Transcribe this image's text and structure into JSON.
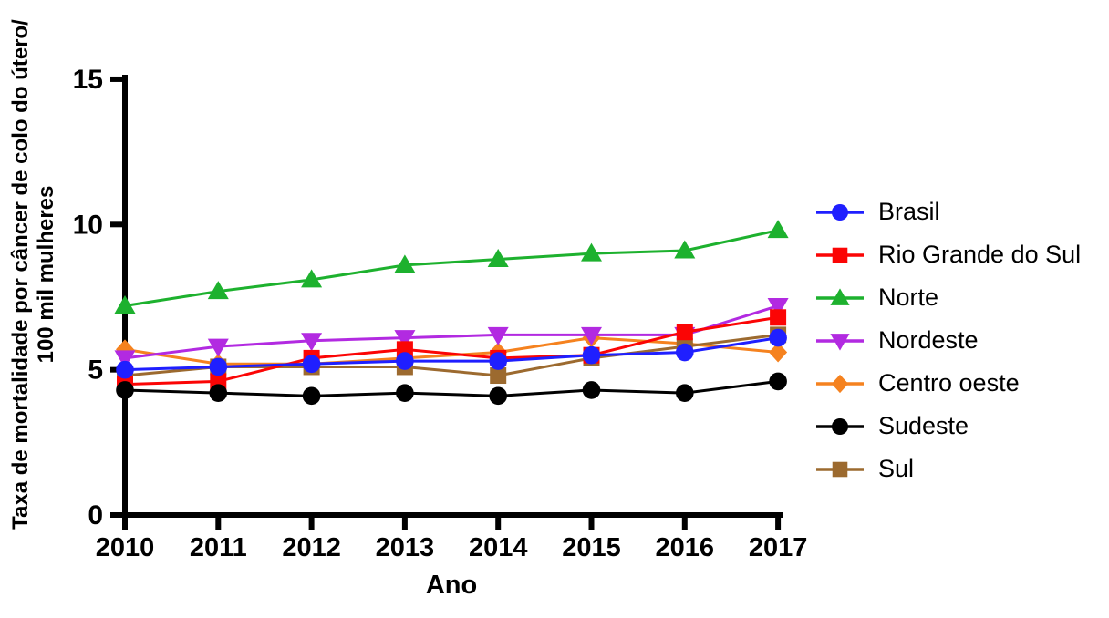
{
  "chart_data": {
    "type": "line",
    "title": "",
    "xlabel": "Ano",
    "ylabel_line1": "Taxa de mortalidade por câncer de colo do útero/",
    "ylabel_line2": "100 mil mulheres",
    "x": [
      2010,
      2011,
      2012,
      2013,
      2014,
      2015,
      2016,
      2017
    ],
    "ylim": [
      0,
      15
    ],
    "yticks": [
      0,
      5,
      10,
      15
    ],
    "grid": false,
    "legend_position": "right",
    "series": [
      {
        "name": "Brasil",
        "color": "#1f1fff",
        "marker": "circle",
        "values": [
          5.0,
          5.1,
          5.2,
          5.3,
          5.3,
          5.5,
          5.6,
          6.1
        ]
      },
      {
        "name": "Rio Grande do Sul",
        "color": "#fb0505",
        "marker": "square",
        "values": [
          4.5,
          4.6,
          5.4,
          5.7,
          5.4,
          5.5,
          6.3,
          6.8
        ]
      },
      {
        "name": "Norte",
        "color": "#1db12e",
        "marker": "triangle-up",
        "values": [
          7.2,
          7.7,
          8.1,
          8.6,
          8.8,
          9.0,
          9.1,
          9.8
        ]
      },
      {
        "name": "Nordeste",
        "color": "#b22ae1",
        "marker": "triangle-down",
        "values": [
          5.4,
          5.8,
          6.0,
          6.1,
          6.2,
          6.2,
          6.2,
          7.2
        ]
      },
      {
        "name": "Centro oeste",
        "color": "#f5821f",
        "marker": "diamond",
        "values": [
          5.7,
          5.2,
          5.2,
          5.4,
          5.6,
          6.1,
          5.9,
          5.6
        ]
      },
      {
        "name": "Sudeste",
        "color": "#000000",
        "marker": "circle",
        "values": [
          4.3,
          4.2,
          4.1,
          4.2,
          4.1,
          4.3,
          4.2,
          4.6
        ]
      },
      {
        "name": "Sul",
        "color": "#9c6a2f",
        "marker": "square",
        "values": [
          4.8,
          5.1,
          5.1,
          5.1,
          4.8,
          5.4,
          5.8,
          6.2
        ]
      }
    ],
    "draw_order": [
      2,
      4,
      3,
      6,
      1,
      5,
      0
    ]
  }
}
